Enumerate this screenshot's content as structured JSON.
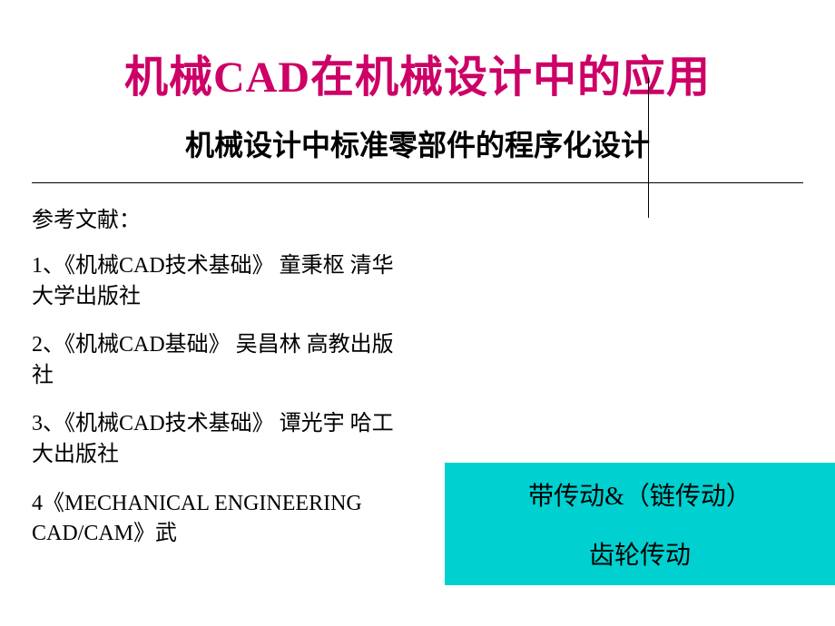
{
  "title": "机械CAD在机械设计中的应用",
  "title_color": "#cc0066",
  "subtitle": "机械设计中标准零部件的程序化设计",
  "references": {
    "header": "参考文献：",
    "items": [
      "1、《机械CAD技术基础》 童秉枢  清华大学出版社",
      "2、《机械CAD基础》 吴昌林 高教出版社",
      "3、《机械CAD技术基础》 谭光宇  哈工大出版社",
      "4《MECHANICAL ENGINEERING CAD/CAM》武"
    ]
  },
  "callout": {
    "line1": "带传动&（链传动）",
    "line2": "齿轮传动",
    "background_color": "#00d0d0"
  },
  "background_color": "#ffffff",
  "text_color": "#000000"
}
